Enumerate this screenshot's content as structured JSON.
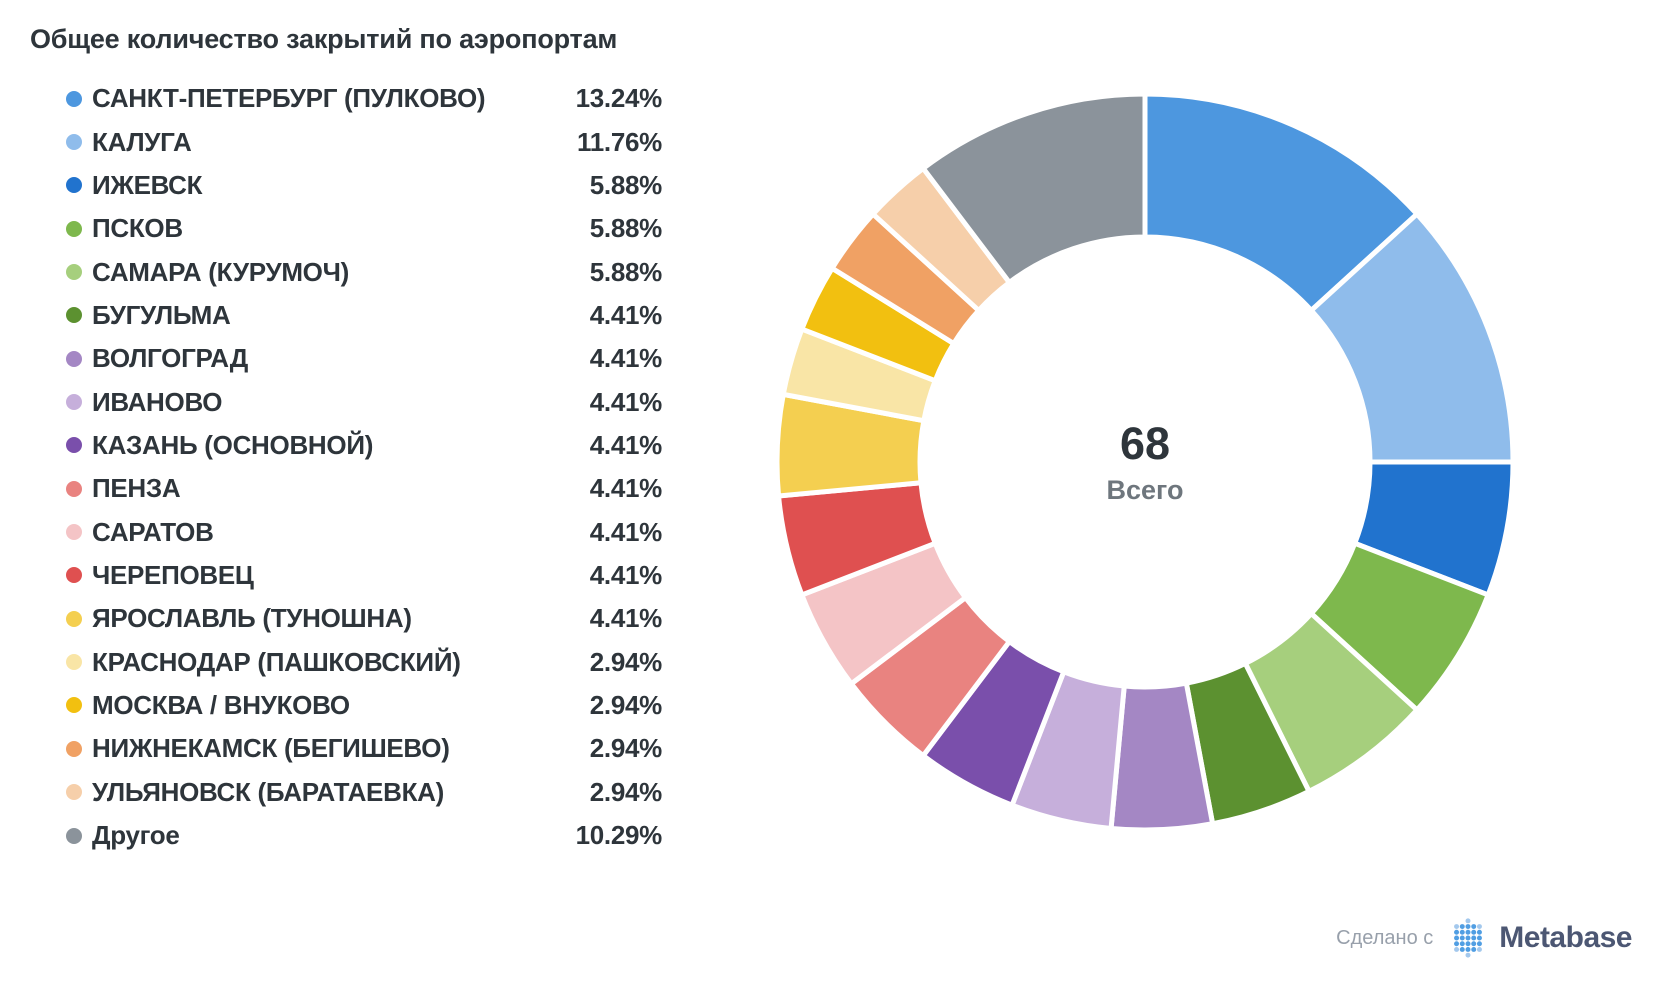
{
  "title": "Общее количество закрытий по аэропортам",
  "chart_data": {
    "type": "pie",
    "title": "Общее количество закрытий по аэропортам",
    "total": 68,
    "center_label": "Всего",
    "legend_position": "left",
    "start_angle_deg": 0,
    "direction": "clockwise",
    "categories": [
      "САНКТ-ПЕТЕРБУРГ (ПУЛКОВО)",
      "КАЛУГА",
      "ИЖЕВСК",
      "ПСКОВ",
      "САМАРА (КУРУМОЧ)",
      "БУГУЛЬМА",
      "ВОЛГОГРАД",
      "ИВАНОВО",
      "КАЗАНЬ (ОСНОВНОЙ)",
      "ПЕНЗА",
      "САРАТОВ",
      "ЧЕРЕПОВЕЦ",
      "ЯРОСЛАВЛЬ (ТУНОШНА)",
      "КРАСНОДАР (ПАШКОВСКИЙ)",
      "МОСКВА / ВНУКОВО",
      "НИЖНЕКАМСК (БЕГИШЕВО)",
      "УЛЬЯНОВСК (БАРАТАЕВКА)",
      "Другое"
    ],
    "values": [
      9,
      8,
      4,
      4,
      4,
      3,
      3,
      3,
      3,
      3,
      3,
      3,
      3,
      2,
      2,
      2,
      2,
      7
    ],
    "percent_labels": [
      "13.24%",
      "11.76%",
      "5.88%",
      "5.88%",
      "5.88%",
      "4.41%",
      "4.41%",
      "4.41%",
      "4.41%",
      "4.41%",
      "4.41%",
      "4.41%",
      "4.41%",
      "2.94%",
      "2.94%",
      "2.94%",
      "2.94%",
      "10.29%"
    ],
    "colors": [
      "#4D97DF",
      "#8FBCEB",
      "#2173CE",
      "#7EB84D",
      "#A6CF7D",
      "#5C9130",
      "#A487C4",
      "#C6AFDB",
      "#7A4FAB",
      "#E98380",
      "#F4C4C6",
      "#DF5050",
      "#F4CF50",
      "#F9E5A6",
      "#F2C010",
      "#F0A164",
      "#F6CFAA",
      "#8B939B"
    ]
  },
  "center": {
    "value": "68",
    "label": "Всего"
  },
  "footer": {
    "made_with": "Сделано с",
    "brand": "Metabase",
    "brand_color": "#509EE3",
    "brand_text_color": "#4C5773",
    "logo_light_dot_color": "#A3C8ED"
  }
}
